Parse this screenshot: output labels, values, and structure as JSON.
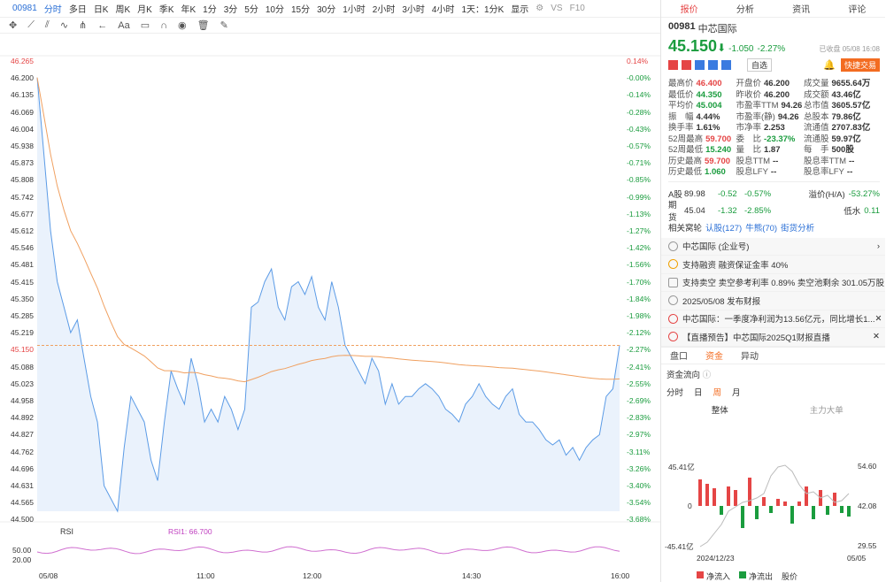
{
  "toolbar": {
    "code": "00981",
    "periods": [
      "分时",
      "多日",
      "日K",
      "周K",
      "月K",
      "季K",
      "年K",
      "1分",
      "3分",
      "5分",
      "10分",
      "15分",
      "30分",
      "1小时",
      "2小时",
      "3小时",
      "4小时",
      "1天：1分K"
    ],
    "display": "显示",
    "vs": "VS",
    "f10": "F10"
  },
  "chart": {
    "y_labels": [
      "46.265",
      "46.200",
      "46.135",
      "46.069",
      "46.004",
      "45.938",
      "45.873",
      "45.808",
      "45.742",
      "45.677",
      "45.612",
      "45.546",
      "45.481",
      "45.415",
      "45.350",
      "45.285",
      "45.219",
      "45.150",
      "45.088",
      "45.023",
      "44.958",
      "44.892",
      "44.827",
      "44.762",
      "44.696",
      "44.631",
      "44.565",
      "44.500"
    ],
    "pct_labels": [
      "0.14%",
      "-0.00%",
      "-0.14%",
      "-0.28%",
      "-0.43%",
      "-0.57%",
      "-0.71%",
      "-0.85%",
      "-0.99%",
      "-1.13%",
      "-1.27%",
      "-1.42%",
      "-1.56%",
      "-1.70%",
      "-1.84%",
      "-1.98%",
      "-2.12%",
      "-2.27%",
      "-2.41%",
      "-2.55%",
      "-2.69%",
      "-2.83%",
      "-2.97%",
      "-3.11%",
      "-3.26%",
      "-3.40%",
      "-3.54%",
      "-3.68%"
    ],
    "x_labels": [
      "05/08",
      "11:00",
      "12:00",
      "14:30",
      "16:00"
    ],
    "rsi_label": "RSI",
    "rsi_value": "RSI1: 66.700",
    "rsi_ticks": [
      "50.00",
      "20.00"
    ]
  },
  "chart_data": {
    "type": "line",
    "current_price": 45.15,
    "ylim": [
      44.5,
      46.265
    ],
    "price": [
      46.2,
      45.9,
      45.6,
      45.4,
      45.3,
      45.2,
      45.25,
      45.1,
      44.95,
      44.85,
      44.6,
      44.55,
      44.5,
      44.75,
      44.95,
      44.9,
      44.85,
      44.7,
      44.62,
      44.85,
      45.05,
      44.98,
      44.92,
      45.1,
      45,
      44.85,
      44.9,
      44.85,
      44.95,
      44.9,
      44.82,
      44.9,
      45.3,
      45.32,
      45.4,
      45.45,
      45.3,
      45.25,
      45.38,
      45.4,
      45.35,
      45.42,
      45.3,
      45.25,
      45.4,
      45.3,
      45.15,
      45.1,
      45.05,
      45.0,
      45.1,
      45.05,
      44.92,
      45.0,
      44.92,
      44.95,
      44.95,
      44.98,
      45,
      44.98,
      44.95,
      44.9,
      44.88,
      44.85,
      44.92,
      44.95,
      45.0,
      44.95,
      44.92,
      44.9,
      44.95,
      44.98,
      44.88,
      44.85,
      44.85,
      44.82,
      44.78,
      44.76,
      44.78,
      44.72,
      44.75,
      44.7,
      44.75,
      44.78,
      44.8,
      44.95,
      44.98,
      45.15
    ]
  },
  "quote": {
    "tabs": [
      "报价",
      "分析",
      "资讯",
      "评论"
    ],
    "code": "00981",
    "name": "中芯国际",
    "price": "45.150",
    "change": "-1.050",
    "pct": "-2.27%",
    "status": "已收盘 05/08 16:08",
    "subscribe": "自选",
    "trade": "快捷交易",
    "stats": [
      [
        "最高价",
        "46.400",
        "开盘价",
        "46.200",
        "成交量",
        "9655.64万"
      ],
      [
        "最低价",
        "44.350",
        "昨收价",
        "46.200",
        "成交额",
        "43.46亿"
      ],
      [
        "平均价",
        "45.004",
        "市盈率TTM",
        "94.26",
        "总市值",
        "3605.57亿"
      ],
      [
        "振　幅",
        "4.44%",
        "市盈率(静)",
        "94.26",
        "总股本",
        "79.86亿"
      ],
      [
        "换手率",
        "1.61%",
        "市净率",
        "2.253",
        "流通值",
        "2707.83亿"
      ],
      [
        "52周最高",
        "59.700",
        "委　比",
        "-23.37%",
        "流通股",
        "59.97亿"
      ],
      [
        "52周最低",
        "15.240",
        "量　比",
        "1.87",
        "每　手",
        "500股"
      ],
      [
        "历史最高",
        "59.700",
        "股息TTM",
        "--",
        "股息率TTM",
        "--"
      ],
      [
        "历史最低",
        "1.060",
        "股息LFY",
        "--",
        "股息率LFY",
        "--"
      ]
    ],
    "a_share": {
      "label": "A股",
      "price": "89.98",
      "chg": "-0.52",
      "pct": "-0.57%",
      "prem_label": "溢价(H/A)",
      "prem": "-53.27%"
    },
    "futures": {
      "label": "期货",
      "price": "45.04",
      "chg": "-1.32",
      "pct": "-2.85%",
      "low_label": "低水",
      "low": "0.11"
    },
    "wheel": {
      "label": "相关窝轮",
      "a": "认股(127)",
      "b": "牛熊(70)",
      "c": "街货分析"
    },
    "news": [
      "中芯国际 (企业号)",
      "支持融资 融资保证金率 40%",
      "支持卖空 卖空参考利率 0.89% 卖空池剩余 301.05万股",
      "2025/05/08 发布财报",
      "中芯国际：一季度净利润为13.56亿元，同比增长1...",
      "【直播预告】中芯国际2025Q1财报直播"
    ],
    "bottom_tabs": [
      "盘口",
      "资金",
      "异动"
    ],
    "flow_title": "资金流向",
    "flow_periods": [
      "分时",
      "日",
      "周",
      "月"
    ],
    "flow_sub": [
      "整体",
      "主力大单"
    ],
    "flow_y": [
      "45.41亿",
      "0",
      "-45.41亿"
    ],
    "flow_r": [
      "54.60",
      "42.08",
      "29.55"
    ],
    "flow_x": [
      "2024/12/23",
      "05/05"
    ],
    "legend": [
      "净流入",
      "净流出",
      "股价"
    ]
  }
}
